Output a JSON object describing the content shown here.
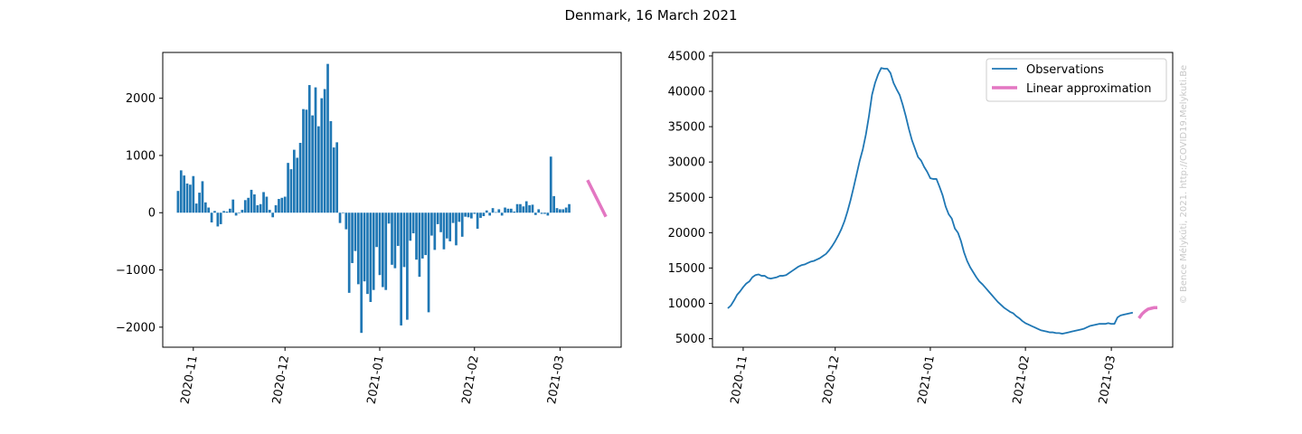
{
  "figure": {
    "title": "Denmark, 16 March 2021",
    "watermark": "© Bence Mélykúti, 2021. http://COVID19.Melykuti.Be"
  },
  "colors": {
    "series": "#1f77b4",
    "approximation": "#e377c2",
    "watermark": "#c8c8c8"
  },
  "chart_data": [
    {
      "type": "bar",
      "title": "",
      "xlabel": "",
      "ylabel": "",
      "ylim": [
        -2350,
        2800
      ],
      "yticks": [
        -2000,
        -1000,
        0,
        1000,
        2000
      ],
      "yticklabels": [
        "−2000",
        "−1000",
        "0",
        "1000",
        "2000"
      ],
      "xtick_labels": [
        "2020-11",
        "2020-12",
        "2021-01",
        "2021-02",
        "2021-03"
      ],
      "xtick_dates": [
        "2020-11-01",
        "2020-12-01",
        "2021-01-01",
        "2021-02-01",
        "2021-03-01"
      ],
      "x_start": "2020-10-27",
      "xlim": [
        "2020-10-22",
        "2021-03-21"
      ],
      "values": [
        380,
        740,
        650,
        510,
        490,
        640,
        160,
        350,
        550,
        180,
        90,
        -170,
        30,
        -240,
        -200,
        30,
        20,
        70,
        230,
        -50,
        -10,
        50,
        220,
        260,
        400,
        320,
        130,
        150,
        360,
        280,
        50,
        -80,
        130,
        240,
        260,
        280,
        870,
        760,
        1100,
        960,
        1220,
        1810,
        1800,
        2230,
        1700,
        2190,
        1510,
        2000,
        2160,
        2600,
        1600,
        1140,
        1230,
        -180,
        -10,
        -290,
        -1400,
        -880,
        -670,
        -1250,
        -2100,
        -1200,
        -1420,
        -1560,
        -1350,
        -600,
        -1090,
        -1300,
        -1350,
        -190,
        -910,
        -970,
        -580,
        -1970,
        -950,
        -1870,
        -490,
        -360,
        -820,
        -1120,
        -800,
        -740,
        -1740,
        -400,
        -650,
        -200,
        -340,
        -640,
        -450,
        -500,
        -180,
        -570,
        -160,
        -420,
        -70,
        -80,
        -100,
        -20,
        -280,
        -90,
        -60,
        40,
        -50,
        80,
        10,
        60,
        -50,
        90,
        70,
        70,
        20,
        150,
        150,
        110,
        200,
        130,
        140,
        -40,
        60,
        -20,
        -20,
        -50,
        980,
        290,
        80,
        60,
        60,
        90,
        150
      ],
      "approximation": {
        "x": [
          "2021-03-10",
          "2021-03-16"
        ],
        "y": [
          570,
          -70
        ],
        "name": ""
      }
    },
    {
      "type": "line",
      "title": "",
      "xlabel": "",
      "ylabel": "",
      "ylim": [
        3800,
        45500
      ],
      "yticks": [
        5000,
        10000,
        15000,
        20000,
        25000,
        30000,
        35000,
        40000,
        45000
      ],
      "yticklabels": [
        "5000",
        "10000",
        "15000",
        "20000",
        "25000",
        "30000",
        "35000",
        "40000",
        "45000"
      ],
      "xtick_labels": [
        "2020-11",
        "2020-12",
        "2021-01",
        "2021-02",
        "2021-03"
      ],
      "xtick_dates": [
        "2020-11-01",
        "2020-12-01",
        "2021-01-01",
        "2021-02-01",
        "2021-03-01"
      ],
      "x_start": "2020-10-27",
      "xlim": [
        "2020-10-22",
        "2021-03-21"
      ],
      "legend": {
        "placement": "upper-right",
        "entries": [
          "Observations",
          "Linear approximation"
        ]
      },
      "observations": [
        9300,
        9700,
        10400,
        11200,
        11700,
        12300,
        12800,
        13100,
        13700,
        14000,
        14100,
        13900,
        13900,
        13600,
        13500,
        13600,
        13700,
        13900,
        13900,
        14000,
        14300,
        14600,
        14900,
        15200,
        15400,
        15500,
        15700,
        15900,
        16000,
        16200,
        16400,
        16700,
        17000,
        17500,
        18100,
        18800,
        19600,
        20500,
        21600,
        23000,
        24600,
        26400,
        28300,
        30200,
        31800,
        33900,
        36500,
        39500,
        41200,
        42400,
        43300,
        43200,
        43200,
        42600,
        41200,
        40300,
        39500,
        38100,
        36500,
        34700,
        33100,
        31900,
        30700,
        30200,
        29300,
        28600,
        27700,
        27600,
        27600,
        26500,
        25300,
        23700,
        22600,
        22000,
        20600,
        20000,
        18800,
        17200,
        16000,
        15100,
        14400,
        13700,
        13100,
        12700,
        12200,
        11700,
        11200,
        10700,
        10200,
        9800,
        9400,
        9100,
        8800,
        8600,
        8200,
        7900,
        7500,
        7200,
        7000,
        6800,
        6600,
        6400,
        6200,
        6100,
        6000,
        5900,
        5900,
        5800,
        5800,
        5700,
        5800,
        5900,
        6000,
        6100,
        6200,
        6300,
        6400,
        6600,
        6800,
        6900,
        7000,
        7100,
        7100,
        7100,
        7200,
        7100,
        7100,
        8000,
        8300,
        8400,
        8500,
        8600,
        8700
      ],
      "approximation": {
        "x": [
          "2021-03-10",
          "2021-03-11",
          "2021-03-12",
          "2021-03-13",
          "2021-03-14",
          "2021-03-15",
          "2021-03-16"
        ],
        "y": [
          7900,
          8500,
          8900,
          9200,
          9300,
          9400,
          9400
        ],
        "name": "Linear approximation"
      },
      "observations_name": "Observations"
    }
  ]
}
